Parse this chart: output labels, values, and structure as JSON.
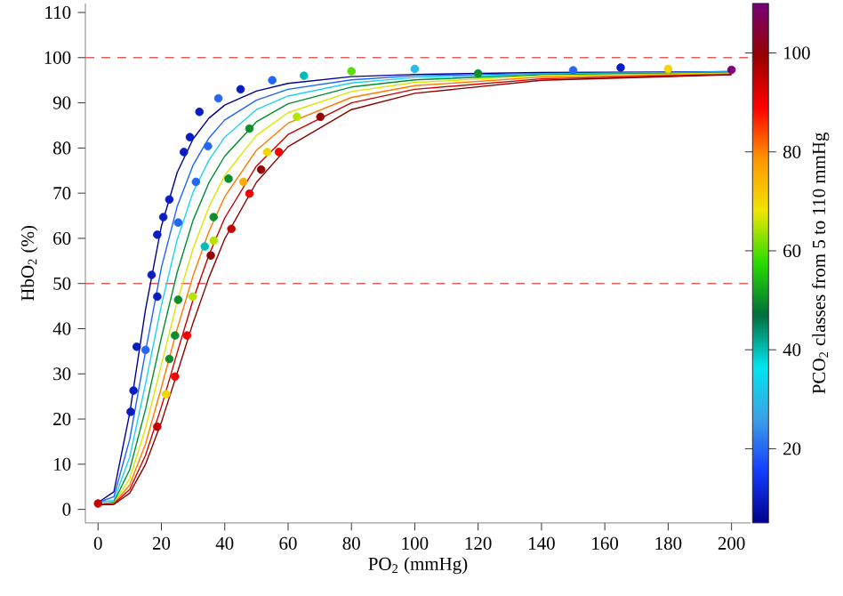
{
  "chart_data": {
    "type": "line",
    "xlabel": "PO$_{2}$ (mmHg)",
    "ylabel": "HbO$_{2}$ (%)",
    "clabel": "PCO$_{2}$  classes from 5 to 110 mmHg",
    "xlim": [
      -4,
      206
    ],
    "ylim": [
      -3,
      112
    ],
    "xticks": [
      0,
      20,
      40,
      60,
      80,
      100,
      120,
      140,
      160,
      180,
      200
    ],
    "yticks": [
      0,
      10,
      20,
      30,
      40,
      50,
      60,
      70,
      80,
      90,
      100,
      110
    ],
    "clim": [
      5,
      110
    ],
    "cticks": [
      20,
      40,
      60,
      80,
      100
    ],
    "x": [
      0,
      5,
      10,
      15,
      20,
      25,
      30,
      35,
      40,
      50,
      60,
      80,
      100,
      140,
      200
    ],
    "series": [
      {
        "color": "#00008c",
        "values": [
          1.5,
          3.9,
          21.3,
          44.3,
          62.7,
          74.6,
          82.0,
          86.6,
          89.5,
          92.6,
          94.3,
          95.8,
          96.3,
          96.7,
          96.9
        ]
      },
      {
        "color": "#1e64fa",
        "values": [
          1.5,
          2.8,
          15.5,
          35.0,
          53.5,
          67.1,
          76.2,
          82.2,
          86.2,
          90.6,
          93.0,
          95.1,
          96.0,
          96.5,
          96.9
        ]
      },
      {
        "color": "#1ed2f0",
        "values": [
          1.5,
          2.0,
          11.6,
          27.8,
          45.2,
          59.7,
          70.2,
          77.3,
          82.4,
          88.5,
          91.5,
          94.4,
          95.6,
          96.4,
          96.8
        ]
      },
      {
        "color": "#008c32",
        "values": [
          1.0,
          1.6,
          8.8,
          22.2,
          38.0,
          52.5,
          64.0,
          72.3,
          78.2,
          85.8,
          89.8,
          93.5,
          95.1,
          96.2,
          96.7
        ]
      },
      {
        "color": "#dce600",
        "values": [
          1.0,
          1.4,
          6.8,
          18.0,
          32.0,
          46.0,
          57.7,
          66.9,
          73.9,
          82.8,
          87.8,
          92.5,
          94.5,
          96.0,
          96.6
        ]
      },
      {
        "color": "#ff7800",
        "values": [
          1.0,
          1.3,
          5.4,
          14.5,
          27.0,
          40.0,
          51.7,
          61.5,
          69.2,
          79.5,
          85.5,
          91.2,
          93.8,
          95.7,
          96.4
        ]
      },
      {
        "color": "#c80000",
        "values": [
          1.0,
          1.2,
          4.4,
          12.0,
          22.7,
          34.7,
          46.4,
          56.3,
          64.5,
          76.0,
          83.0,
          90.0,
          93.0,
          95.3,
          96.3
        ]
      },
      {
        "color": "#8b0000",
        "values": [
          1.0,
          1.1,
          3.6,
          10.0,
          19.3,
          30.2,
          41.3,
          51.3,
          59.9,
          72.4,
          80.3,
          88.5,
          92.1,
          95.0,
          96.2
        ]
      },
      {
        "type": "scatter",
        "marker": "circle",
        "x": [
          12.2,
          11.2,
          10.3,
          16.9,
          18.7,
          18.7,
          20.6,
          22.5,
          27.1,
          29.0,
          34.7,
          30.9,
          25.3,
          15.0,
          25.3,
          24.3,
          22.5,
          36.5,
          41.2,
          47.8,
          33.7,
          29.9,
          21.5,
          36.5,
          45.9,
          53.4,
          62.8,
          18.7,
          24.3,
          28.1,
          35.6,
          42.1,
          47.8,
          51.5,
          57.1,
          70.2,
          0,
          80,
          100,
          120,
          150,
          165,
          180,
          200,
          32,
          38,
          45,
          55,
          65
        ],
        "values": [
          36.0,
          26.3,
          21.6,
          51.9,
          47.1,
          60.8,
          64.7,
          68.6,
          79.1,
          82.4,
          80.4,
          72.5,
          63.5,
          35.3,
          46.4,
          38.5,
          33.3,
          64.7,
          73.2,
          84.3,
          58.2,
          47.1,
          25.5,
          59.5,
          72.5,
          79.1,
          86.9,
          18.3,
          29.4,
          38.5,
          56.2,
          62.1,
          69.9,
          75.2,
          79.1,
          86.9,
          1.3,
          97.0,
          97.5,
          96.5,
          97.2,
          97.8,
          97.5,
          97.3,
          88,
          91,
          93,
          95,
          96
        ],
        "cvalues": [
          10,
          10,
          10,
          10,
          10,
          10,
          10,
          10,
          10,
          10,
          20,
          20,
          20,
          20,
          50,
          50,
          50,
          50,
          50,
          50,
          40,
          65,
          70,
          65,
          75,
          70,
          65,
          95,
          90,
          90,
          100,
          95,
          90,
          100,
          90,
          100,
          95,
          60,
          30,
          50,
          20,
          10,
          70,
          110,
          10,
          20,
          10,
          20,
          40
        ],
        "colors": [
          "#0a1dc3",
          "#0a1dc3",
          "#0a1dc3",
          "#0a1dc3",
          "#0a1dc3",
          "#0a1dc3",
          "#0a1dc3",
          "#0a1dc3",
          "#0a1dc3",
          "#0a1dc3",
          "#2567f4",
          "#2567f4",
          "#2567f4",
          "#2567f4",
          "#0b8e2b",
          "#0b8e2b",
          "#0b8e2b",
          "#0b8e2b",
          "#0b8e2b",
          "#0b8e2b",
          "#00beb5",
          "#b7e300",
          "#f3d500",
          "#b7e300",
          "#faad00",
          "#f3d500",
          "#b7e300",
          "#c30000",
          "#f50000",
          "#f50000",
          "#950006",
          "#c30000",
          "#f50000",
          "#950006",
          "#f50000",
          "#950006",
          "#c30000",
          "#58df00",
          "#25bbea",
          "#0b8e2b",
          "#2567f4",
          "#0a1dc3",
          "#f3d500",
          "#780078",
          "#0a1dc3",
          "#2567f4",
          "#0a1dc3",
          "#2567f4",
          "#00beb5"
        ]
      }
    ],
    "ref_lines": [
      {
        "axis": "y",
        "value": 50,
        "color": "#e06060",
        "line_style": "dashed"
      },
      {
        "axis": "y",
        "value": 100,
        "color": "#e06060",
        "line_style": "dashed"
      }
    ],
    "grid": false
  }
}
